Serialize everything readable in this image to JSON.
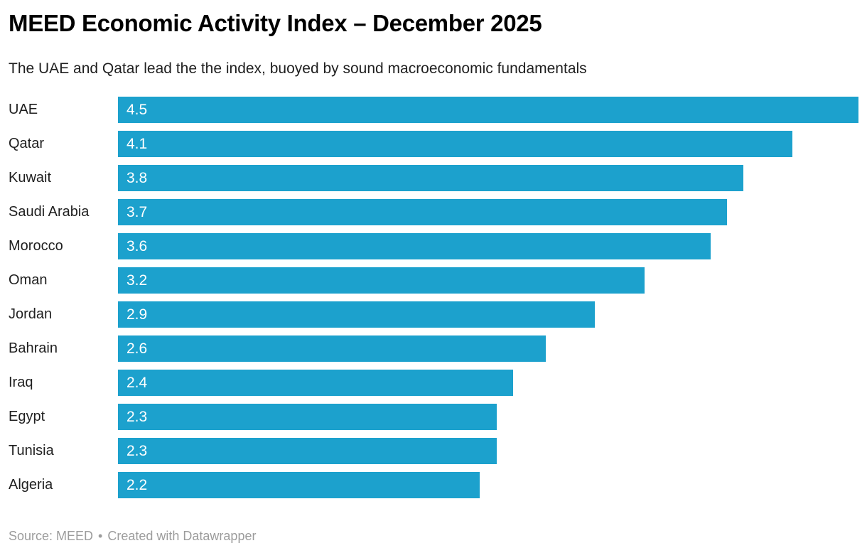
{
  "header": {
    "title": "MEED Economic Activity Index – December 2025",
    "subtitle": "The UAE and Qatar lead the the index, buoyed by sound macroeconomic fundamentals"
  },
  "chart_data": {
    "type": "bar",
    "orientation": "horizontal",
    "title": "MEED Economic Activity Index – December 2025",
    "subtitle": "The UAE and Qatar lead the the index, buoyed by sound macroeconomic fundamentals",
    "categories": [
      "UAE",
      "Qatar",
      "Kuwait",
      "Saudi Arabia",
      "Morocco",
      "Oman",
      "Jordan",
      "Bahrain",
      "Iraq",
      "Egypt",
      "Tunisia",
      "Algeria"
    ],
    "values": [
      4.5,
      4.1,
      3.8,
      3.7,
      3.6,
      3.2,
      2.9,
      2.6,
      2.4,
      2.3,
      2.3,
      2.2
    ],
    "xlabel": "",
    "ylabel": "",
    "xlim": [
      0,
      4.5
    ],
    "value_labels": "inside-bar-start",
    "grid": false,
    "legend": "none"
  },
  "colors": {
    "bar": "#1CA1CD",
    "title": "#000000",
    "subtitle": "#1f1f1f",
    "label": "#1f1f1f",
    "value_label": "#ffffff",
    "footer": "#9c9c9c",
    "background": "#ffffff"
  },
  "footer": {
    "source": "Source: MEED",
    "separator": "•",
    "attribution": "Created with Datawrapper"
  }
}
